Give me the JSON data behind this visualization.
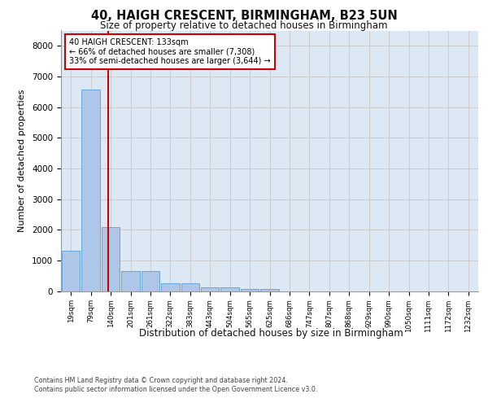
{
  "title1": "40, HAIGH CRESCENT, BIRMINGHAM, B23 5UN",
  "title2": "Size of property relative to detached houses in Birmingham",
  "xlabel": "Distribution of detached houses by size in Birmingham",
  "ylabel": "Number of detached properties",
  "footer1": "Contains HM Land Registry data © Crown copyright and database right 2024.",
  "footer2": "Contains public sector information licensed under the Open Government Licence v3.0.",
  "bin_labels": [
    "19sqm",
    "79sqm",
    "140sqm",
    "201sqm",
    "261sqm",
    "322sqm",
    "383sqm",
    "443sqm",
    "504sqm",
    "565sqm",
    "625sqm",
    "686sqm",
    "747sqm",
    "807sqm",
    "868sqm",
    "929sqm",
    "990sqm",
    "1050sqm",
    "1111sqm",
    "1172sqm",
    "1232sqm"
  ],
  "bar_values": [
    1310,
    6580,
    2080,
    650,
    640,
    260,
    240,
    130,
    110,
    70,
    70,
    0,
    0,
    0,
    0,
    0,
    0,
    0,
    0,
    0,
    0
  ],
  "bar_color": "#aec6e8",
  "bar_edge_color": "#5a9fd4",
  "property_line_x": 1.88,
  "property_sqm": 133,
  "percent_smaller": 66,
  "count_smaller": 7308,
  "percent_larger_semi": 33,
  "count_larger_semi": 3644,
  "annotation_box_color": "#cc0000",
  "annotation_text_color": "#000000",
  "vline_color": "#cc0000",
  "ylim": [
    0,
    8500
  ],
  "yticks": [
    0,
    1000,
    2000,
    3000,
    4000,
    5000,
    6000,
    7000,
    8000
  ],
  "grid_color": "#cccccc",
  "axes_bg_color": "#dde8f5",
  "fig_bg_color": "#ffffff"
}
